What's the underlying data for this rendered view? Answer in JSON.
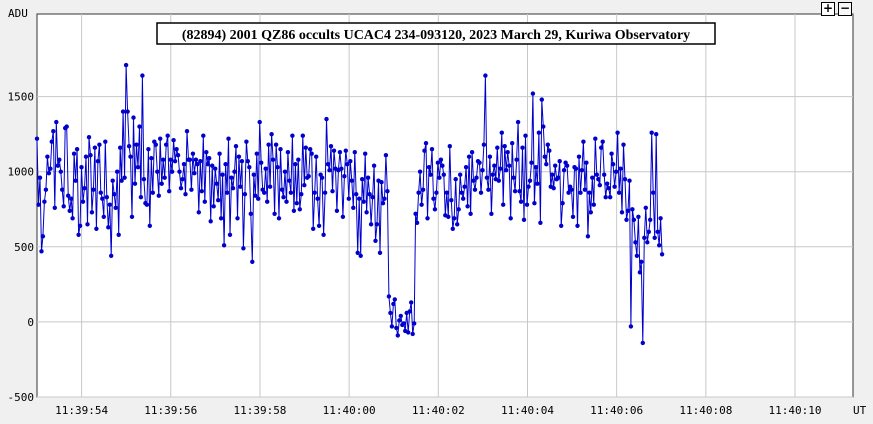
{
  "chart_data": {
    "type": "line",
    "title": "(82894) 2001 QZ86 occults UCAC4 234-093120, 2023 March 29, Kuriwa Observatory",
    "ylabel": "ADU",
    "xlabel": "UT",
    "ylim": [
      -500,
      2050
    ],
    "xlim": [
      "11:39:53.0",
      "11:40:11.3"
    ],
    "yticks": [
      -500,
      0,
      500,
      1000,
      1500
    ],
    "xticks": [
      "11:39:54",
      "11:39:56",
      "11:39:58",
      "11:40:00",
      "11:40:02",
      "11:40:04",
      "11:40:06",
      "11:40:08",
      "11:40:10"
    ],
    "grid": true,
    "marker": "circle",
    "series": [
      {
        "color": "#0000cc",
        "x_start": "11:39:53.0",
        "x_step_s": 0.0333,
        "values": [
          1220,
          780,
          960,
          470,
          570,
          800,
          880,
          1100,
          990,
          1020,
          1200,
          1270,
          760,
          1330,
          1040,
          1080,
          1000,
          880,
          770,
          1290,
          1300,
          840,
          740,
          820,
          690,
          1120,
          940,
          1150,
          580,
          640,
          1030,
          800,
          890,
          1100,
          650,
          1230,
          1110,
          730,
          880,
          1160,
          620,
          1070,
          1180,
          860,
          820,
          700,
          1200,
          830,
          630,
          780,
          440,
          940,
          850,
          760,
          1000,
          580,
          1160,
          940,
          1400,
          960,
          1710,
          1400,
          1170,
          1100,
          700,
          1360,
          920,
          1180,
          1030,
          1300,
          830,
          1640,
          950,
          790,
          780,
          1150,
          640,
          1090,
          860,
          1200,
          1180,
          1000,
          840,
          1220,
          920,
          1080,
          960,
          1180,
          1240,
          870,
          1080,
          1000,
          1210,
          1070,
          1150,
          1110,
          1000,
          890,
          950,
          1050,
          850,
          1270,
          1080,
          1080,
          880,
          1120,
          990,
          1080,
          1050,
          730,
          1070,
          870,
          1240,
          800,
          1130,
          1050,
          1090,
          670,
          1040,
          770,
          1020,
          920,
          810,
          1120,
          690,
          980,
          510,
          1050,
          860,
          1220,
          580,
          960,
          890,
          1000,
          1170,
          690,
          1100,
          900,
          1070,
          490,
          850,
          1200,
          1070,
          1030,
          720,
          400,
          980,
          840,
          1120,
          820,
          1330,
          1060,
          880,
          860,
          1020,
          800,
          1180,
          900,
          1250,
          1080,
          720,
          1180,
          1030,
          690,
          1150,
          880,
          830,
          1000,
          800,
          1130,
          940,
          860,
          1240,
          740,
          1050,
          790,
          1080,
          750,
          850,
          1240,
          910,
          1160,
          960,
          970,
          1150,
          1120,
          620,
          860,
          1100,
          820,
          640,
          980,
          960,
          580,
          860,
          1350,
          1050,
          1010,
          1170,
          870,
          1140,
          1020,
          740,
          1010,
          1130,
          1020,
          700,
          970,
          1140,
          1050,
          820,
          1070,
          940,
          760,
          1130,
          850,
          460,
          820,
          440,
          950,
          800,
          1120,
          730,
          960,
          850,
          650,
          830,
          1040,
          540,
          650,
          940,
          460,
          930,
          790,
          820,
          1110,
          870,
          170,
          60,
          -30,
          120,
          150,
          -40,
          -90,
          10,
          40,
          -20,
          -10,
          -60,
          60,
          -70,
          70,
          130,
          -80,
          -10,
          720,
          660,
          860,
          1000,
          780,
          880,
          1140,
          1190,
          690,
          1030,
          980,
          1150,
          820,
          750,
          860,
          1060,
          960,
          1080,
          1040,
          980,
          710,
          860,
          700,
          1170,
          810,
          620,
          690,
          950,
          650,
          750,
          980,
          860,
          820,
          900,
          1030,
          770,
          1100,
          720,
          1130,
          940,
          880,
          960,
          1070,
          1060,
          860,
          1010,
          1180,
          1640,
          960,
          880,
          1100,
          720,
          980,
          1040,
          950,
          1160,
          940,
          1020,
          1260,
          780,
          1170,
          1010,
          1130,
          1040,
          690,
          1190,
          960,
          870,
          1080,
          1330,
          870,
          800,
          1160,
          680,
          1240,
          780,
          900,
          940,
          1060,
          1520,
          790,
          1030,
          920,
          1260,
          660,
          1480,
          1300,
          1100,
          1050,
          1180,
          1140,
          900,
          980,
          890,
          1040,
          950,
          960,
          1070,
          640,
          790,
          1010,
          1060,
          1040,
          860,
          900,
          880,
          700,
          1030,
          1020,
          640,
          1100,
          860,
          1010,
          1200,
          880,
          1060,
          570,
          860,
          730,
          960,
          780,
          1220,
          980,
          950,
          910,
          1160,
          1200,
          980,
          830,
          920,
          890,
          830,
          1120,
          1050,
          900,
          1000,
          1260,
          860,
          1020,
          730,
          1180,
          950,
          680,
          740,
          940,
          -30,
          750,
          680,
          530,
          440,
          700,
          330,
          400,
          -140,
          560,
          760,
          530,
          600,
          680,
          1260,
          860,
          560,
          1250,
          600,
          510,
          690,
          450
        ]
      }
    ]
  }
}
